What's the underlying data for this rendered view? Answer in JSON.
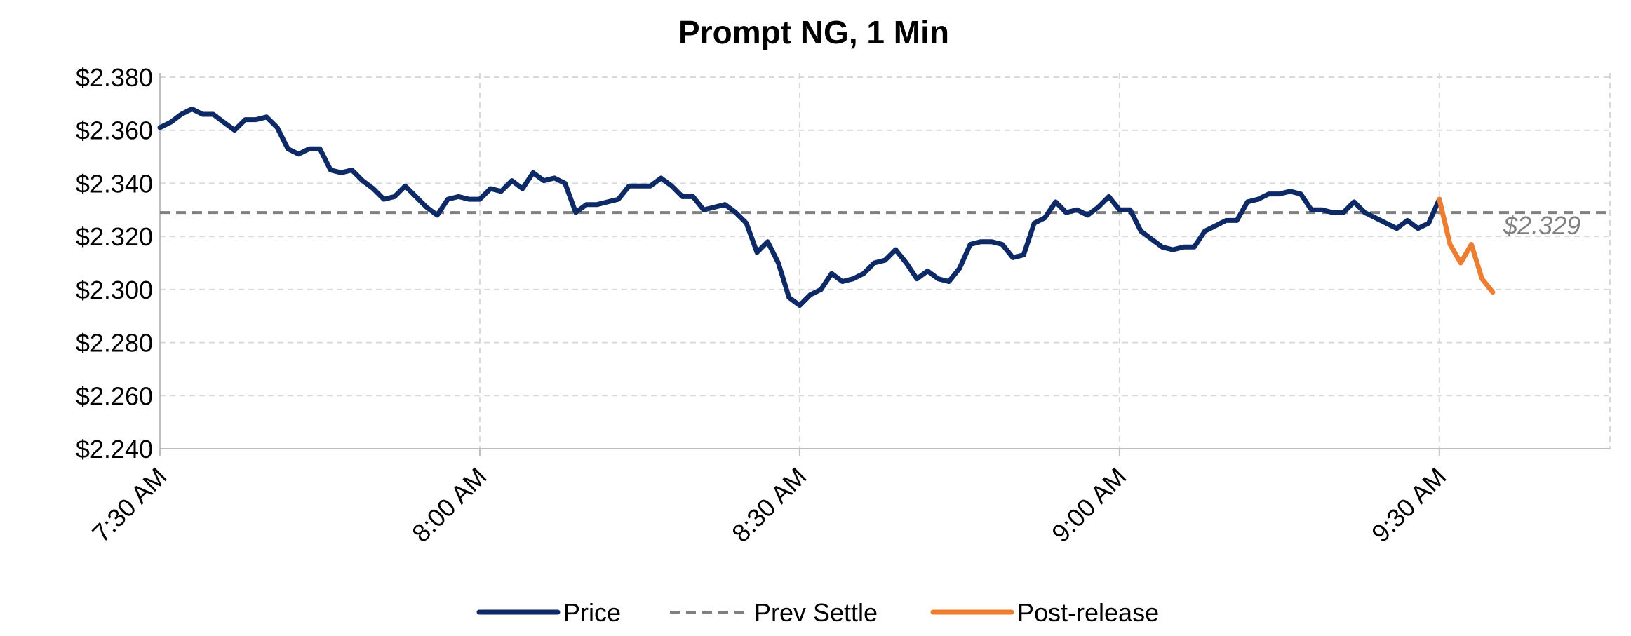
{
  "chart_data": {
    "type": "line",
    "title": "Prompt NG, 1 Min",
    "xlabel": "",
    "ylabel": "",
    "x_unit": "minutes since 7:30 AM",
    "xlim": [
      0,
      136
    ],
    "ylim": [
      2.24,
      2.38
    ],
    "y_ticks": [
      "$2.380",
      "$2.360",
      "$2.340",
      "$2.320",
      "$2.300",
      "$2.280",
      "$2.260",
      "$2.240"
    ],
    "x_ticks": [
      "7:30 AM",
      "8:00 AM",
      "8:30 AM",
      "9:00 AM",
      "9:30 AM"
    ],
    "grid": true,
    "legend_position": "bottom",
    "series": [
      {
        "name": "Price",
        "color": "#0d2a67",
        "style": "solid",
        "values": [
          [
            0,
            2.361
          ],
          [
            1,
            2.363
          ],
          [
            2,
            2.366
          ],
          [
            3,
            2.368
          ],
          [
            4,
            2.366
          ],
          [
            5,
            2.366
          ],
          [
            6,
            2.363
          ],
          [
            7,
            2.36
          ],
          [
            8,
            2.364
          ],
          [
            9,
            2.364
          ],
          [
            10,
            2.365
          ],
          [
            11,
            2.361
          ],
          [
            12,
            2.353
          ],
          [
            13,
            2.351
          ],
          [
            14,
            2.353
          ],
          [
            15,
            2.353
          ],
          [
            16,
            2.345
          ],
          [
            17,
            2.344
          ],
          [
            18,
            2.345
          ],
          [
            19,
            2.341
          ],
          [
            20,
            2.338
          ],
          [
            21,
            2.334
          ],
          [
            22,
            2.335
          ],
          [
            23,
            2.339
          ],
          [
            24,
            2.335
          ],
          [
            25,
            2.331
          ],
          [
            26,
            2.328
          ],
          [
            27,
            2.334
          ],
          [
            28,
            2.335
          ],
          [
            29,
            2.334
          ],
          [
            30,
            2.334
          ],
          [
            31,
            2.338
          ],
          [
            32,
            2.337
          ],
          [
            33,
            2.341
          ],
          [
            34,
            2.338
          ],
          [
            35,
            2.344
          ],
          [
            36,
            2.341
          ],
          [
            37,
            2.342
          ],
          [
            38,
            2.34
          ],
          [
            39,
            2.329
          ],
          [
            40,
            2.332
          ],
          [
            41,
            2.332
          ],
          [
            42,
            2.333
          ],
          [
            43,
            2.334
          ],
          [
            44,
            2.339
          ],
          [
            45,
            2.339
          ],
          [
            46,
            2.339
          ],
          [
            47,
            2.342
          ],
          [
            48,
            2.339
          ],
          [
            49,
            2.335
          ],
          [
            50,
            2.335
          ],
          [
            51,
            2.33
          ],
          [
            52,
            2.331
          ],
          [
            53,
            2.332
          ],
          [
            54,
            2.329
          ],
          [
            55,
            2.325
          ],
          [
            56,
            2.314
          ],
          [
            57,
            2.318
          ],
          [
            58,
            2.31
          ],
          [
            59,
            2.297
          ],
          [
            60,
            2.294
          ],
          [
            61,
            2.298
          ],
          [
            62,
            2.3
          ],
          [
            63,
            2.306
          ],
          [
            64,
            2.303
          ],
          [
            65,
            2.304
          ],
          [
            66,
            2.306
          ],
          [
            67,
            2.31
          ],
          [
            68,
            2.311
          ],
          [
            69,
            2.315
          ],
          [
            70,
            2.31
          ],
          [
            71,
            2.304
          ],
          [
            72,
            2.307
          ],
          [
            73,
            2.304
          ],
          [
            74,
            2.303
          ],
          [
            75,
            2.308
          ],
          [
            76,
            2.317
          ],
          [
            77,
            2.318
          ],
          [
            78,
            2.318
          ],
          [
            79,
            2.317
          ],
          [
            80,
            2.312
          ],
          [
            81,
            2.313
          ],
          [
            82,
            2.325
          ],
          [
            83,
            2.327
          ],
          [
            84,
            2.333
          ],
          [
            85,
            2.329
          ],
          [
            86,
            2.33
          ],
          [
            87,
            2.328
          ],
          [
            88,
            2.331
          ],
          [
            89,
            2.335
          ],
          [
            90,
            2.33
          ],
          [
            91,
            2.33
          ],
          [
            92,
            2.322
          ],
          [
            93,
            2.319
          ],
          [
            94,
            2.316
          ],
          [
            95,
            2.315
          ],
          [
            96,
            2.316
          ],
          [
            97,
            2.316
          ],
          [
            98,
            2.322
          ],
          [
            99,
            2.324
          ],
          [
            100,
            2.326
          ],
          [
            101,
            2.326
          ],
          [
            102,
            2.333
          ],
          [
            103,
            2.334
          ],
          [
            104,
            2.336
          ],
          [
            105,
            2.336
          ],
          [
            106,
            2.337
          ],
          [
            107,
            2.336
          ],
          [
            108,
            2.33
          ],
          [
            109,
            2.33
          ],
          [
            110,
            2.329
          ],
          [
            111,
            2.329
          ],
          [
            112,
            2.333
          ],
          [
            113,
            2.329
          ],
          [
            114,
            2.327
          ],
          [
            115,
            2.325
          ],
          [
            116,
            2.323
          ],
          [
            117,
            2.326
          ],
          [
            118,
            2.323
          ],
          [
            119,
            2.325
          ],
          [
            120,
            2.334
          ]
        ]
      },
      {
        "name": "Prev Settle",
        "color": "#808080",
        "style": "dashed",
        "values": [
          [
            0,
            2.329
          ],
          [
            136,
            2.329
          ]
        ]
      },
      {
        "name": "Post-release",
        "color": "#ed7d31",
        "style": "solid",
        "values": [
          [
            120,
            2.334
          ],
          [
            121,
            2.317
          ],
          [
            122,
            2.31
          ],
          [
            123,
            2.317
          ],
          [
            124,
            2.304
          ],
          [
            125,
            2.299
          ]
        ]
      }
    ],
    "annotations": [
      {
        "text": "$2.329",
        "x": 126,
        "y": 2.324,
        "color": "#808080"
      }
    ]
  }
}
